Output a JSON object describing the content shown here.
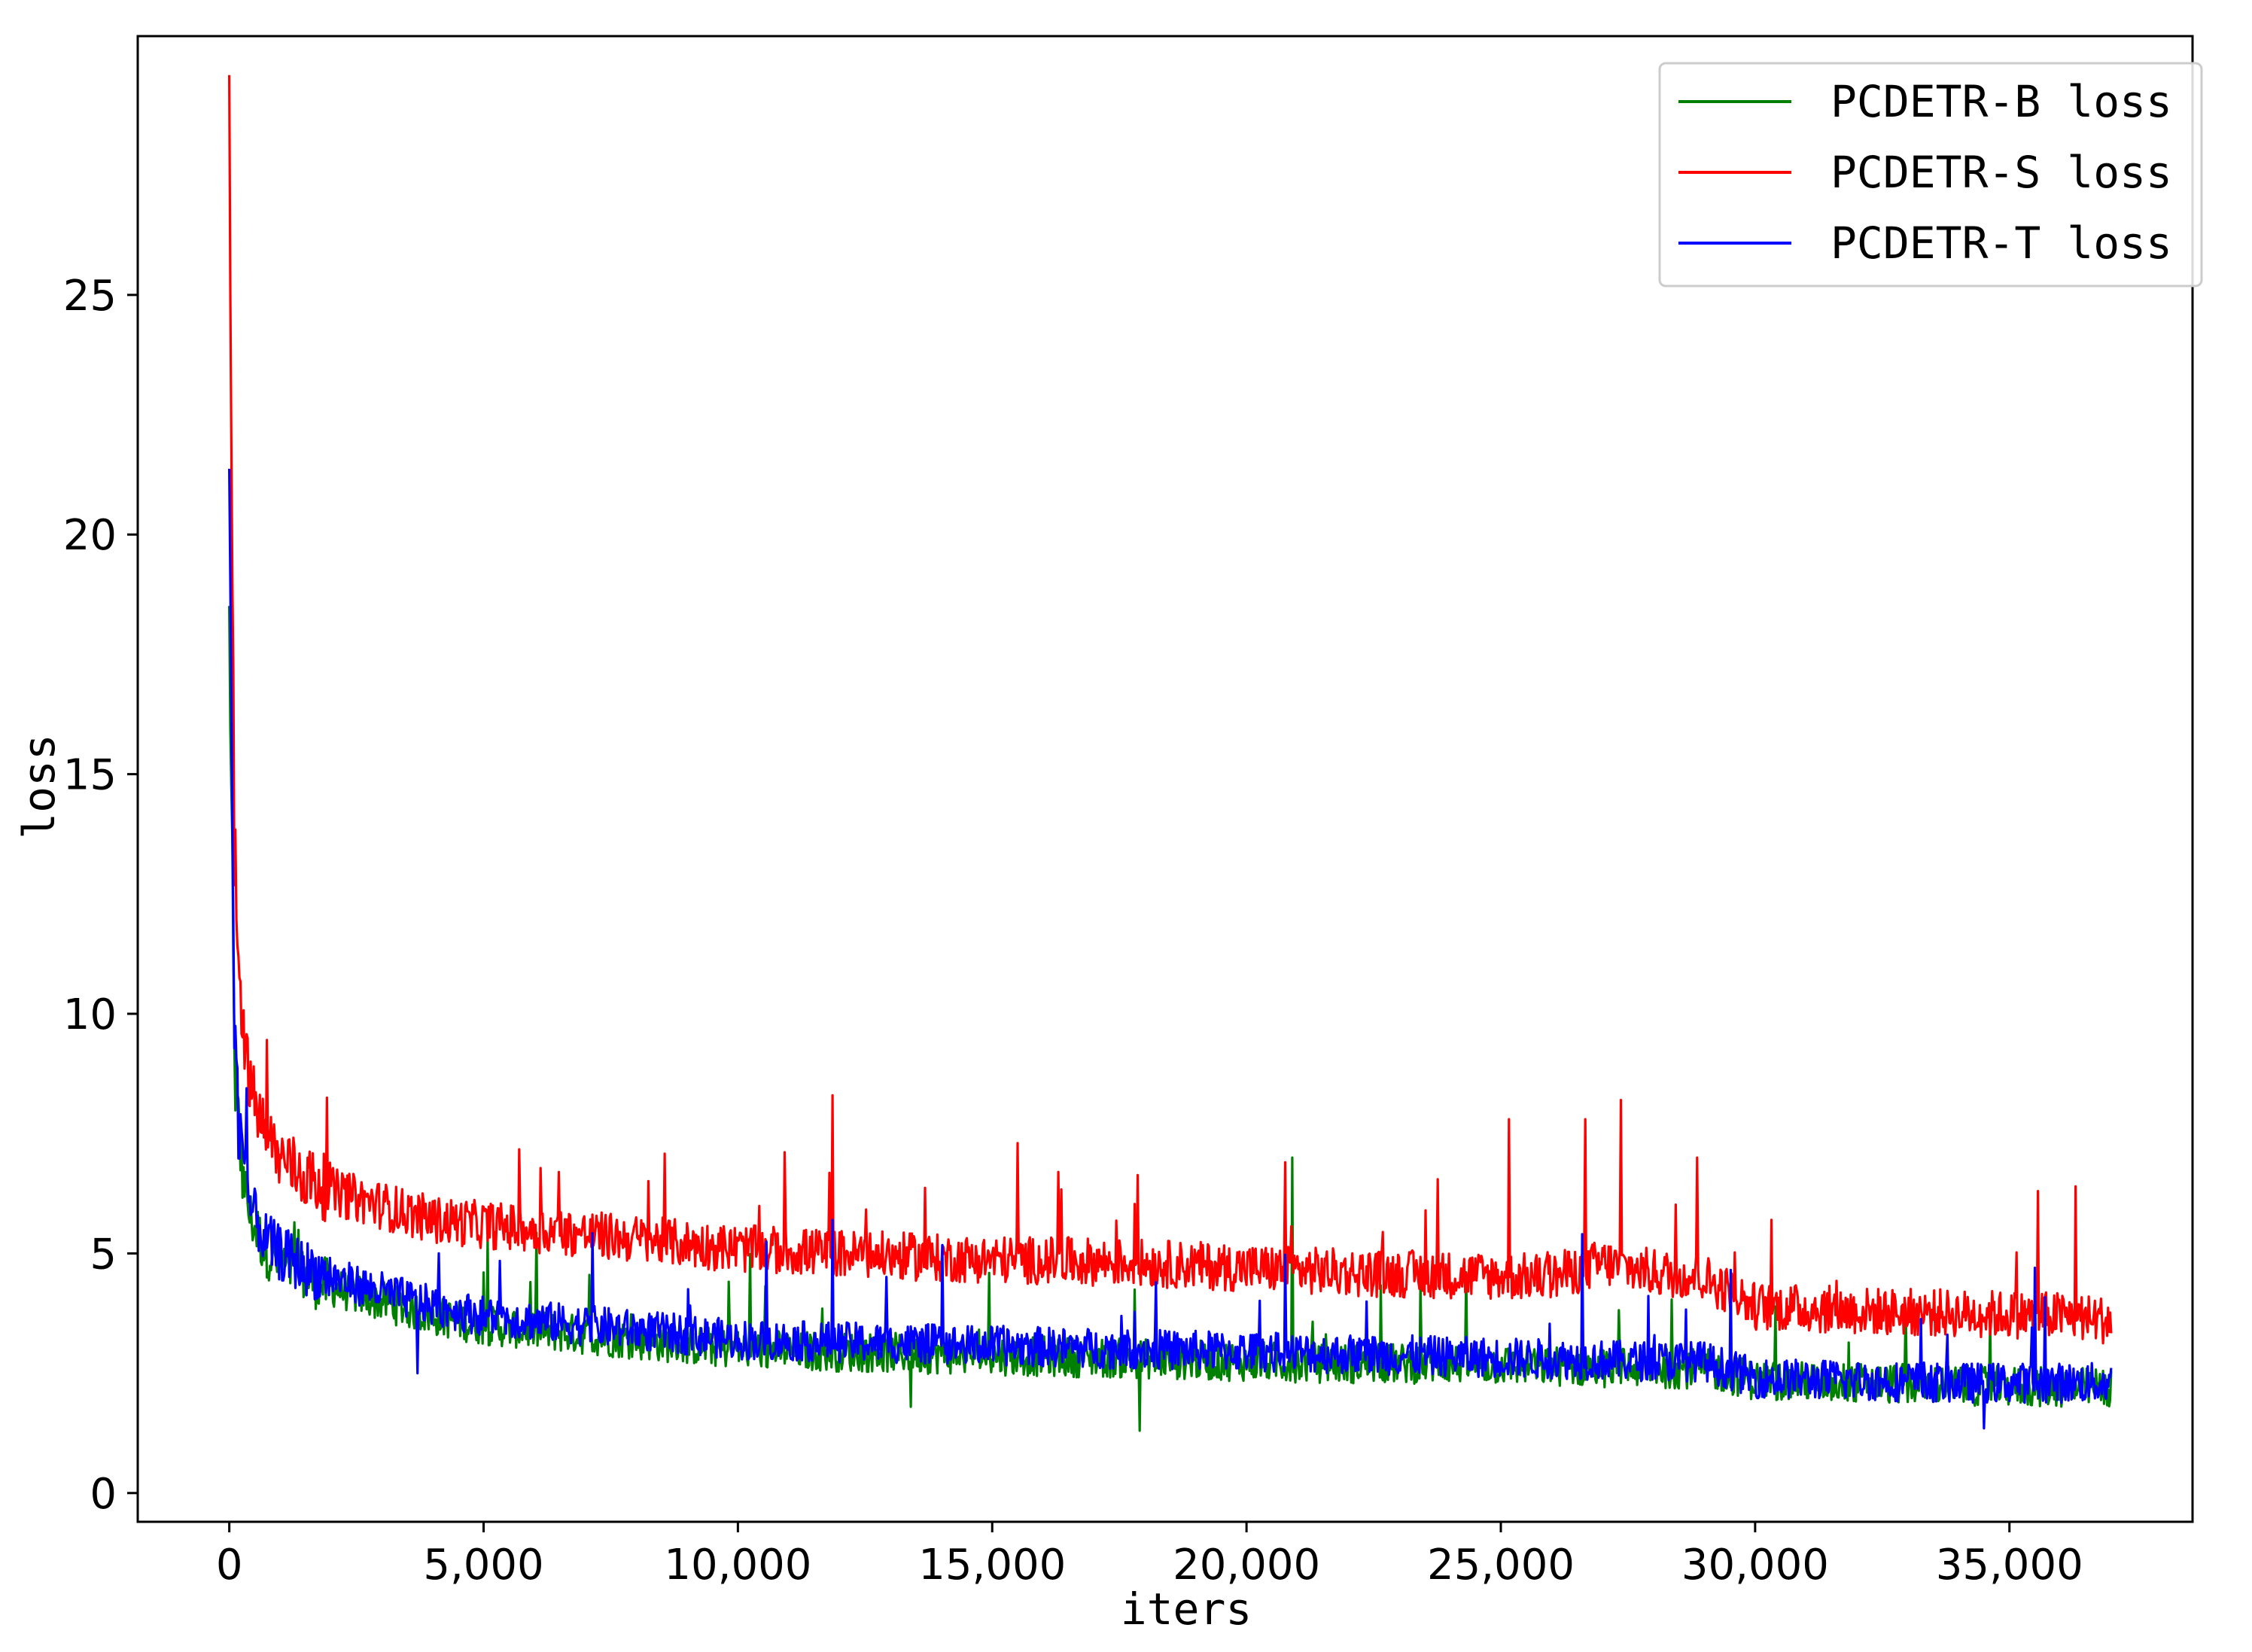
{
  "chart_data": {
    "type": "line",
    "title": "",
    "xlabel": "iters",
    "ylabel": "loss",
    "xlim": [
      -1800,
      38600
    ],
    "ylim": [
      -0.6,
      30.4
    ],
    "grid": false,
    "legend_position": "top-right",
    "xticks": [
      0,
      5000,
      10000,
      15000,
      20000,
      25000,
      30000,
      35000
    ],
    "xtick_labels": [
      "0",
      "5,000",
      "10,000",
      "15,000",
      "20,000",
      "25,000",
      "30,000",
      "35,000"
    ],
    "yticks": [
      0,
      5,
      10,
      15,
      20,
      25
    ],
    "ytick_labels": [
      "0",
      "5",
      "10",
      "15",
      "20",
      "25"
    ],
    "series": [
      {
        "name": "PCDETR-B loss",
        "color": "#008000",
        "x": [
          0,
          100,
          200,
          400,
          700,
          1000,
          1500,
          2000,
          3000,
          4000,
          5000,
          6000,
          7000,
          8000,
          9000,
          10000,
          12000,
          14000,
          16000,
          18000,
          20000,
          22000,
          24000,
          26000,
          28000,
          29000,
          30000,
          32000,
          34000,
          36000,
          37000
        ],
        "y": [
          18.2,
          9.0,
          7.2,
          5.8,
          5.1,
          4.8,
          4.5,
          4.3,
          4.0,
          3.7,
          3.5,
          3.4,
          3.3,
          3.2,
          3.1,
          3.0,
          2.95,
          2.9,
          2.85,
          2.8,
          2.75,
          2.7,
          2.7,
          2.65,
          2.6,
          2.6,
          2.35,
          2.3,
          2.25,
          2.2,
          2.2
        ],
        "noise": 0.42,
        "spikes": [
          [
            17900,
            1.3
          ],
          [
            20900,
            7.0
          ],
          [
            13400,
            1.8
          ]
        ]
      },
      {
        "name": "PCDETR-S loss",
        "color": "#ff0000",
        "x": [
          0,
          100,
          200,
          400,
          700,
          1000,
          1500,
          2000,
          3000,
          4000,
          5000,
          6000,
          7000,
          8000,
          9000,
          10000,
          12000,
          14000,
          16000,
          18000,
          20000,
          22000,
          24000,
          26000,
          27000,
          28000,
          29000,
          30000,
          32000,
          34000,
          36000,
          37000
        ],
        "y": [
          28.7,
          13.5,
          10.5,
          8.5,
          7.5,
          7.0,
          6.6,
          6.3,
          6.0,
          5.7,
          5.6,
          5.5,
          5.4,
          5.3,
          5.2,
          5.1,
          5.0,
          4.9,
          4.85,
          4.8,
          4.7,
          4.6,
          4.55,
          4.5,
          4.8,
          4.6,
          4.5,
          3.9,
          3.8,
          3.75,
          3.7,
          3.6
        ],
        "noise": 0.5,
        "spikes": [
          [
            11850,
            8.3
          ],
          [
            15500,
            7.3
          ],
          [
            16300,
            6.7
          ],
          [
            20750,
            6.9
          ],
          [
            25150,
            7.8
          ],
          [
            26650,
            7.8
          ],
          [
            27350,
            8.2
          ],
          [
            28850,
            7.0
          ],
          [
            35550,
            6.3
          ],
          [
            36300,
            6.4
          ]
        ]
      },
      {
        "name": "PCDETR-T loss",
        "color": "#0000ff",
        "x": [
          0,
          100,
          200,
          400,
          700,
          1000,
          1500,
          2000,
          3000,
          4000,
          5000,
          6000,
          7000,
          8000,
          9000,
          10000,
          12000,
          14000,
          16000,
          18000,
          20000,
          22000,
          24000,
          26000,
          28000,
          29000,
          30000,
          32000,
          34000,
          36000,
          37000
        ],
        "y": [
          21.5,
          9.5,
          7.5,
          6.0,
          5.3,
          5.0,
          4.7,
          4.5,
          4.2,
          3.9,
          3.7,
          3.6,
          3.5,
          3.4,
          3.3,
          3.2,
          3.15,
          3.1,
          3.05,
          3.0,
          2.95,
          2.9,
          2.85,
          2.8,
          2.75,
          2.75,
          2.4,
          2.35,
          2.3,
          2.3,
          2.3
        ],
        "noise": 0.42,
        "spikes": [
          [
            3700,
            2.5
          ],
          [
            11850,
            5.7
          ],
          [
            26600,
            5.4
          ],
          [
            35500,
            4.7
          ],
          [
            34500,
            1.35
          ]
        ]
      }
    ]
  }
}
